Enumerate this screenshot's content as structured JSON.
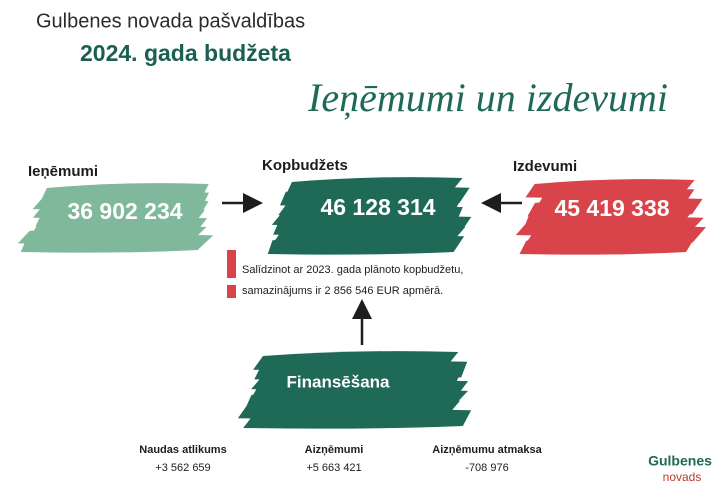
{
  "header": {
    "subtitle": "Gulbenes novada pašvaldības",
    "title": "2024. gada budžeta",
    "script_title": "Ieņēmumi un izdevumi"
  },
  "revenue": {
    "label": "Ieņēmumi",
    "value": "36 902 234"
  },
  "total": {
    "label": "Kopbudžets",
    "value": "46 128 314"
  },
  "expenses": {
    "label": "Izdevumi",
    "value": "45 419 338"
  },
  "note": {
    "lines": [
      "Salīdzinot ar 2023. gada plānoto kopbudžetu,",
      "samazinājums ir 2 856 546 EUR apmērā."
    ]
  },
  "financing": {
    "label": "Finansēšana",
    "items": [
      {
        "label": "Naudas atlikums",
        "value": "+3 562 659"
      },
      {
        "label": "Aizņēmumi",
        "value": "+5 663 421"
      },
      {
        "label": "Aizņēmumu atmaksa",
        "value": "-708 976"
      }
    ]
  },
  "logo": {
    "line1": "Gulbenes",
    "line2": "novads"
  }
}
